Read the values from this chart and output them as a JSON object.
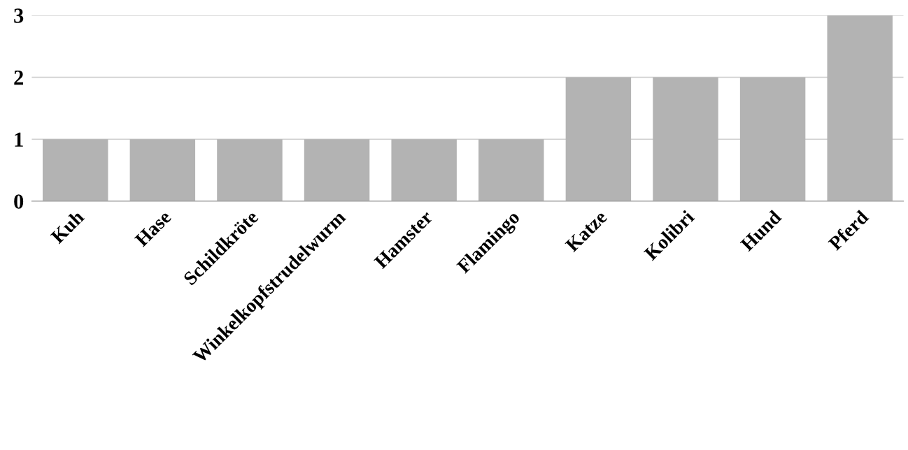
{
  "chart_data": {
    "type": "bar",
    "categories": [
      "Kuh",
      "Hase",
      "Schildkröte",
      "Winkelkopfstrudelwurm",
      "Hamster",
      "Flamingo",
      "Katze",
      "Kolibri",
      "Hund",
      "Pferd"
    ],
    "values": [
      1,
      1,
      1,
      1,
      1,
      1,
      2,
      2,
      2,
      3
    ],
    "color": "#b3b3b3",
    "ylim": [
      0,
      3
    ],
    "yticks": [
      0,
      1,
      2,
      3
    ],
    "grid": "y"
  }
}
